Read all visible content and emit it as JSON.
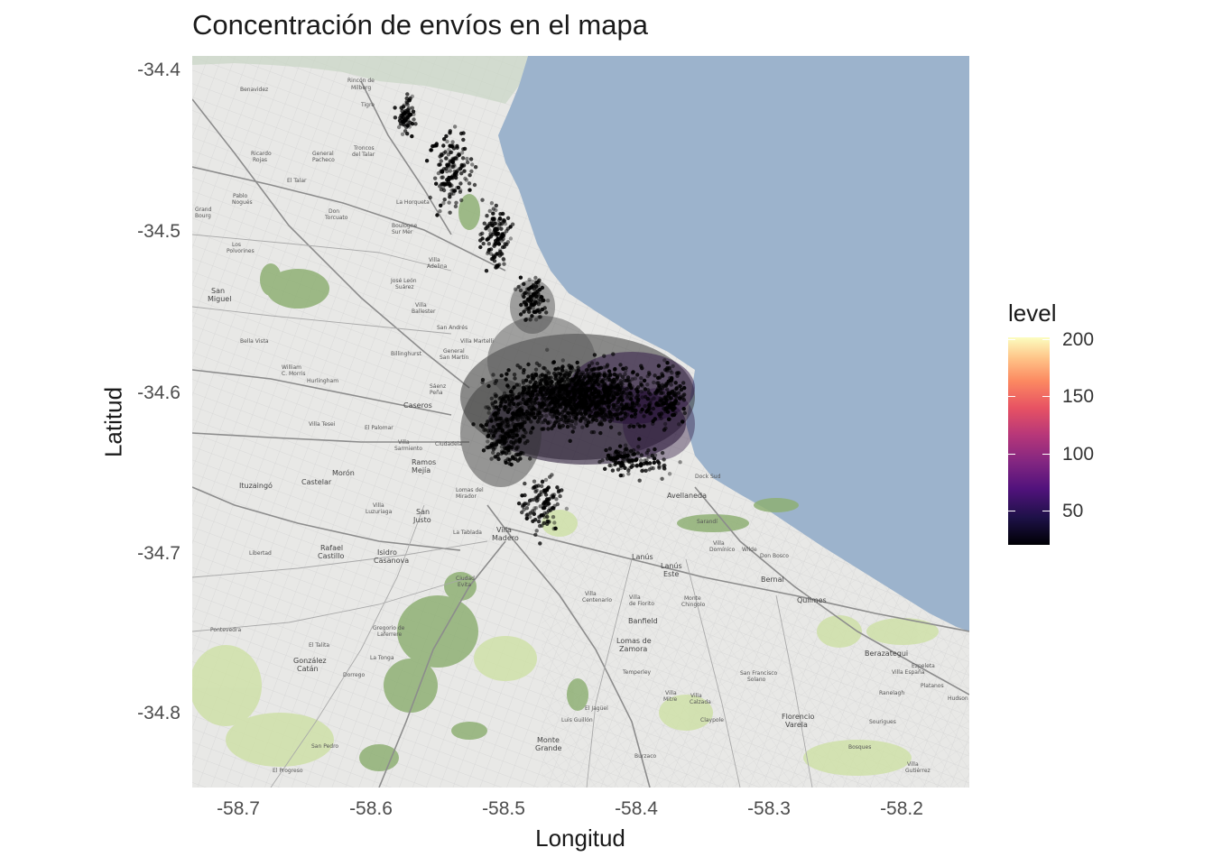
{
  "title": "Concentración de envíos en el mapa",
  "x_axis": {
    "label": "Longitud",
    "ticks": [
      "-58.7",
      "-58.6",
      "-58.5",
      "-58.4",
      "-58.3",
      "-58.2"
    ]
  },
  "y_axis": {
    "label": "Latitud",
    "ticks": [
      "-34.4",
      "-34.5",
      "-34.6",
      "-34.7",
      "-34.8"
    ]
  },
  "legend": {
    "title": "level",
    "ticks": [
      "200",
      "150",
      "100",
      "50"
    ],
    "colormap": "magma"
  },
  "map_labels": [
    "Benavidez",
    "Rincón de Milberg",
    "Tigre",
    "Ricardo Rojas",
    "General Pacheco",
    "Troncos del Talar",
    "El Talar",
    "Pablo Nogués",
    "Grand Bourg",
    "Don Torcuato",
    "La Horqueta",
    "Boulogne Sur Mer",
    "Los Polvorines",
    "Villa Adelina",
    "José León Suárez",
    "San Miguel",
    "Villa Ballester",
    "Bella Vista",
    "San Andrés",
    "Villa Martelli",
    "Billinghurst",
    "General San Martín",
    "William C. Morris",
    "Hurlingham",
    "Caseros",
    "Sáenz Peña",
    "Villa Tesei",
    "El Palomar",
    "Villa Sarmiento",
    "Ciudadela",
    "Ramos Mejía",
    "Morón",
    "Castelar",
    "Ituzaingó",
    "Lomas del Mirador",
    "Villa Luzuriaga",
    "San Justo",
    "La Tablada",
    "Villa Madero",
    "Libertad",
    "Rafael Castillo",
    "Isidro Casanova",
    "Ciudad Evita",
    "Avellaneda",
    "Dock Sud",
    "Sarandí",
    "Villa Domínico",
    "Wilde",
    "Don Bosco",
    "Lanús",
    "Lanús Este",
    "Bernal",
    "Villa Centenario",
    "Monte Chingolo",
    "Quilmes",
    "Banfield",
    "Lomas de Zamora",
    "Gregorio de Laferrere",
    "Pontevedra",
    "El Talita",
    "González Catán",
    "La Tonga",
    "Dorrego",
    "Temperley",
    "San Francisco Solano",
    "Berazategui",
    "Villa España",
    "Ranelagh",
    "Hudson",
    "Monte Grande",
    "Luis Guillón",
    "Claypole",
    "Florencio Varela",
    "Bosques",
    "San Pedro",
    "El Progreso",
    "Burzaco",
    "El Jagüel",
    "Sourigues",
    "Villa Gutiérrez",
    "Platanos",
    "Ezpeleta"
  ],
  "colors": {
    "water": "#9cb3cc",
    "land": "#e8e8e6",
    "park": "#8fb075",
    "points": "#000000"
  }
}
